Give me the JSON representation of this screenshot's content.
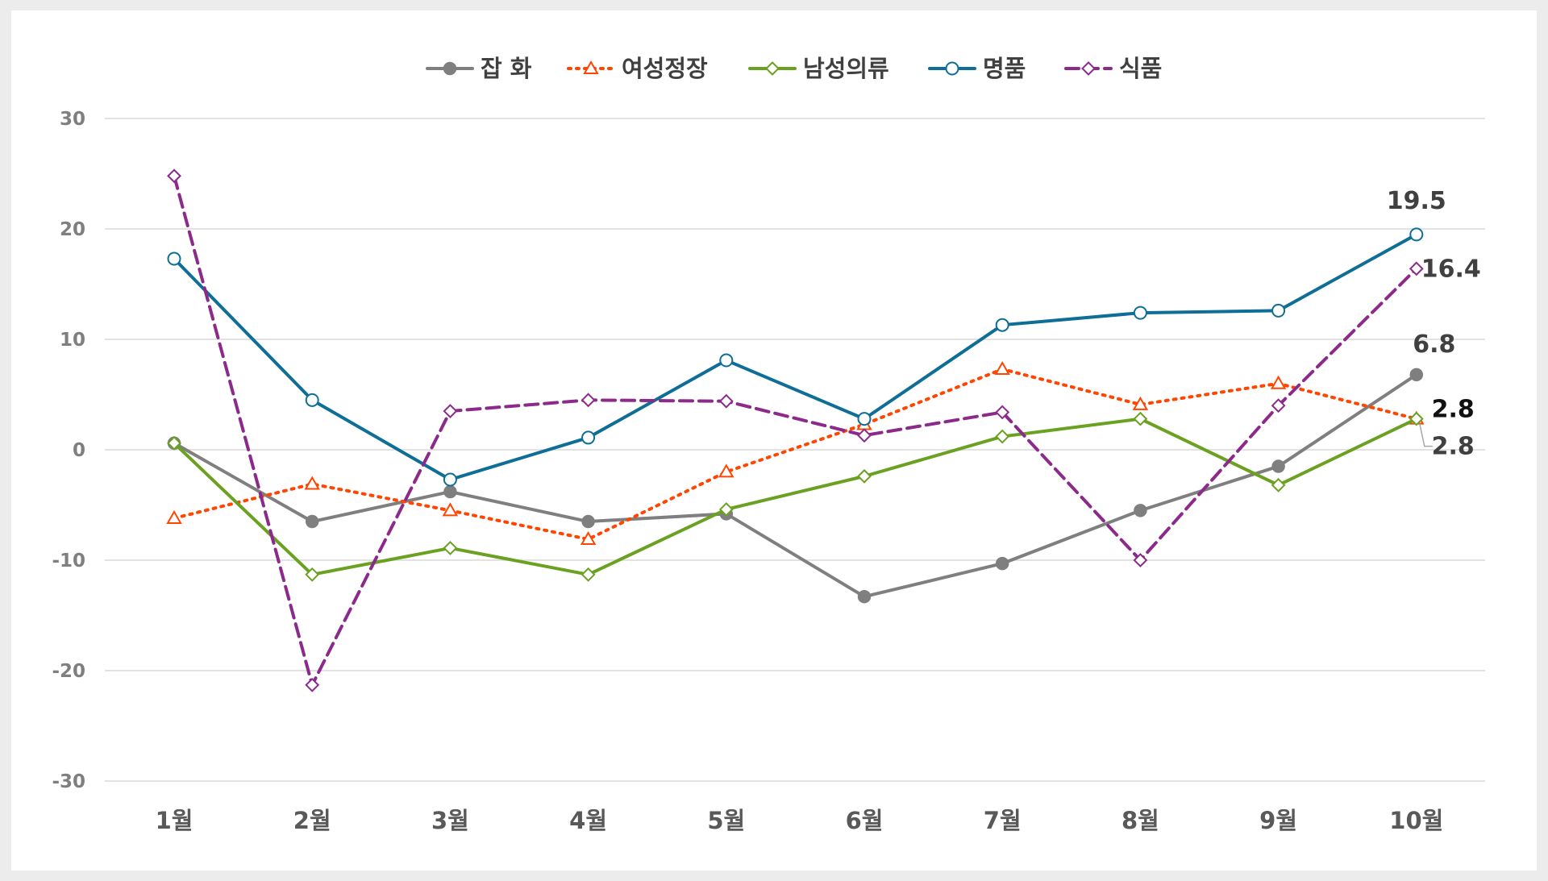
{
  "chart_data": {
    "type": "line",
    "title": "",
    "xlabel": "",
    "ylabel": "",
    "categories": [
      "1월",
      "2월",
      "3월",
      "4월",
      "5월",
      "6월",
      "7월",
      "8월",
      "9월",
      "10월"
    ],
    "ylim": [
      -30,
      30
    ],
    "yticks": [
      -30,
      -20,
      -10,
      0,
      10,
      20,
      30
    ],
    "grid": true,
    "legend": "top-center",
    "series": [
      {
        "name": "잡 화",
        "values": [
          0.6,
          -6.5,
          -3.8,
          -6.5,
          -5.8,
          -13.3,
          -10.3,
          -5.5,
          -1.5,
          6.8
        ],
        "color": "#7f7f7f",
        "dash": "solid",
        "marker": "circle-filled",
        "last_label": "6.8"
      },
      {
        "name": "여성정장",
        "values": [
          -6.2,
          -3.1,
          -5.5,
          -8.1,
          -2.0,
          2.3,
          7.3,
          4.1,
          6.0,
          2.8
        ],
        "color": "#ff4500",
        "dash": "dotted",
        "marker": "triangle-open",
        "last_label": "2.8"
      },
      {
        "name": "남성의류",
        "values": [
          0.6,
          -11.3,
          -8.9,
          -11.3,
          -5.4,
          -2.4,
          1.2,
          2.8,
          -3.2,
          2.8
        ],
        "color": "#6aa121",
        "dash": "solid",
        "marker": "diamond-open",
        "last_label": "2.8"
      },
      {
        "name": "명품",
        "values": [
          17.3,
          4.5,
          -2.7,
          1.1,
          8.1,
          2.8,
          11.3,
          12.4,
          12.6,
          19.5
        ],
        "color": "#0e6e96",
        "dash": "solid",
        "marker": "circle-open",
        "last_label": "19.5"
      },
      {
        "name": "식품",
        "values": [
          24.8,
          -21.3,
          3.5,
          4.5,
          4.4,
          1.3,
          3.4,
          -10.0,
          4.0,
          16.4
        ],
        "color": "#8b2a8b",
        "dash": "dashed",
        "marker": "diamond-open",
        "last_label": "16.4"
      }
    ]
  }
}
